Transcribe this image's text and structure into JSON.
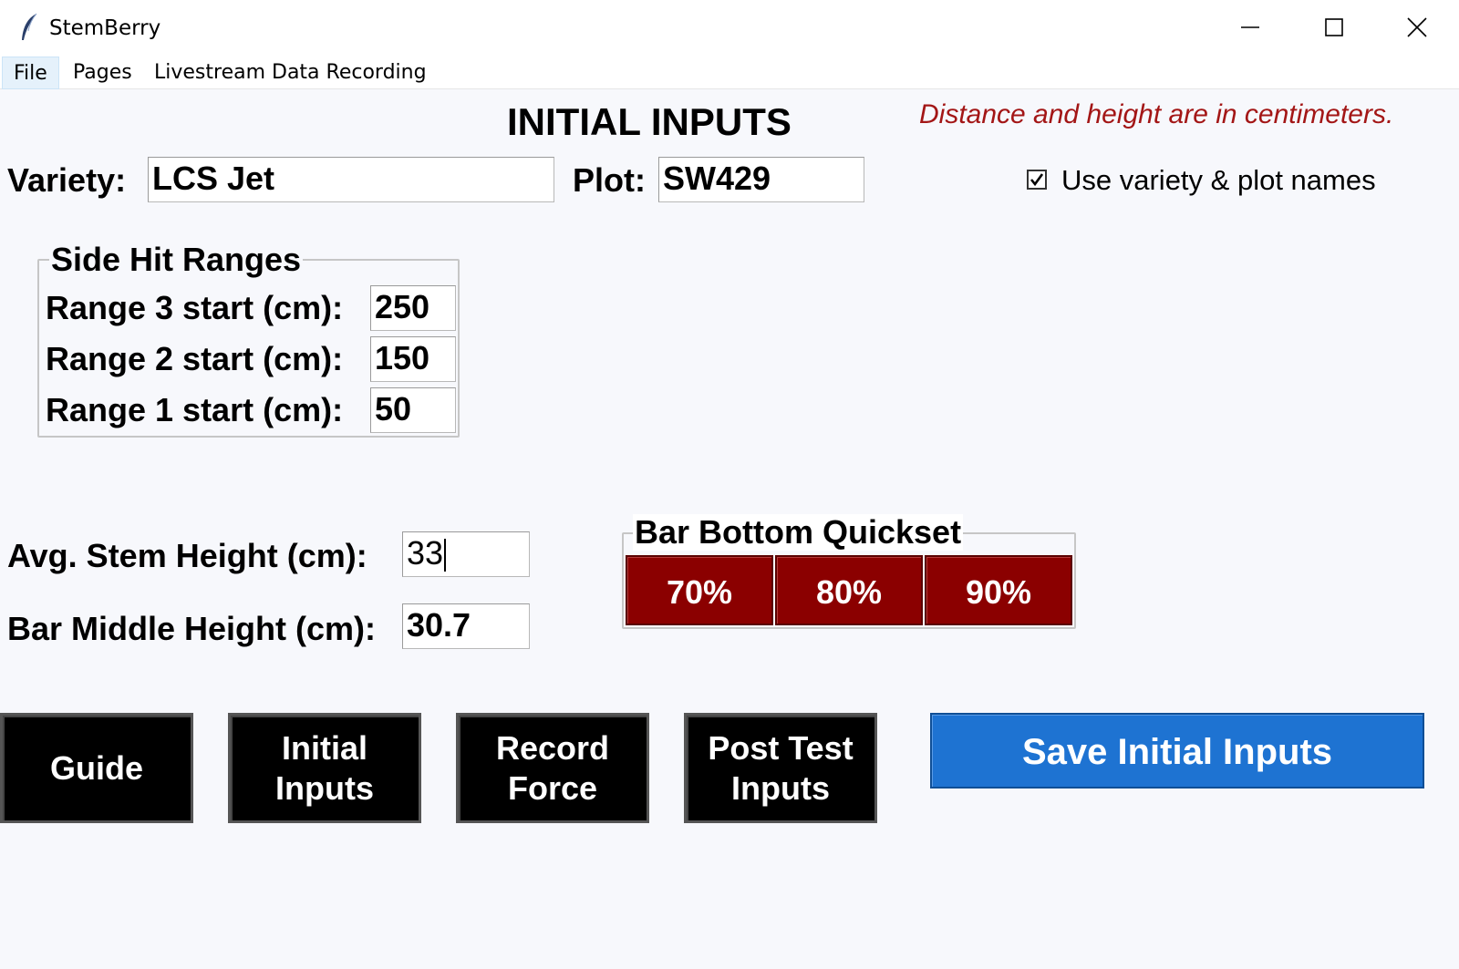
{
  "window": {
    "title": "StemBerry"
  },
  "menu": {
    "items": [
      "File",
      "Pages",
      "Livestream Data Recording"
    ]
  },
  "header": {
    "title": "INITIAL INPUTS",
    "note": "Distance and height are in centimeters."
  },
  "variety": {
    "label": "Variety:",
    "value": "LCS Jet"
  },
  "plot": {
    "label": "Plot:",
    "value": "SW429"
  },
  "use_names": {
    "label": "Use variety & plot names",
    "checked": true
  },
  "side_hit": {
    "title": "Side Hit Ranges",
    "ranges": [
      {
        "label": "Range 3 start (cm):",
        "value": "250"
      },
      {
        "label": "Range 2 start (cm):",
        "value": "150"
      },
      {
        "label": "Range 1 start (cm):",
        "value": "50"
      }
    ]
  },
  "stem_height": {
    "label": "Avg. Stem Height (cm):",
    "value": "33"
  },
  "bar_middle": {
    "label": "Bar Middle Height (cm):",
    "value": "30.7"
  },
  "quickset": {
    "title": "Bar Bottom Quickset",
    "buttons": [
      "70%",
      "80%",
      "90%"
    ],
    "color": "#8b0000"
  },
  "nav": {
    "buttons": [
      "Guide",
      "Initial\nInputs",
      "Record\nForce",
      "Post Test\nInputs"
    ]
  },
  "save": {
    "label": "Save Initial Inputs",
    "color": "#1e73d2"
  }
}
